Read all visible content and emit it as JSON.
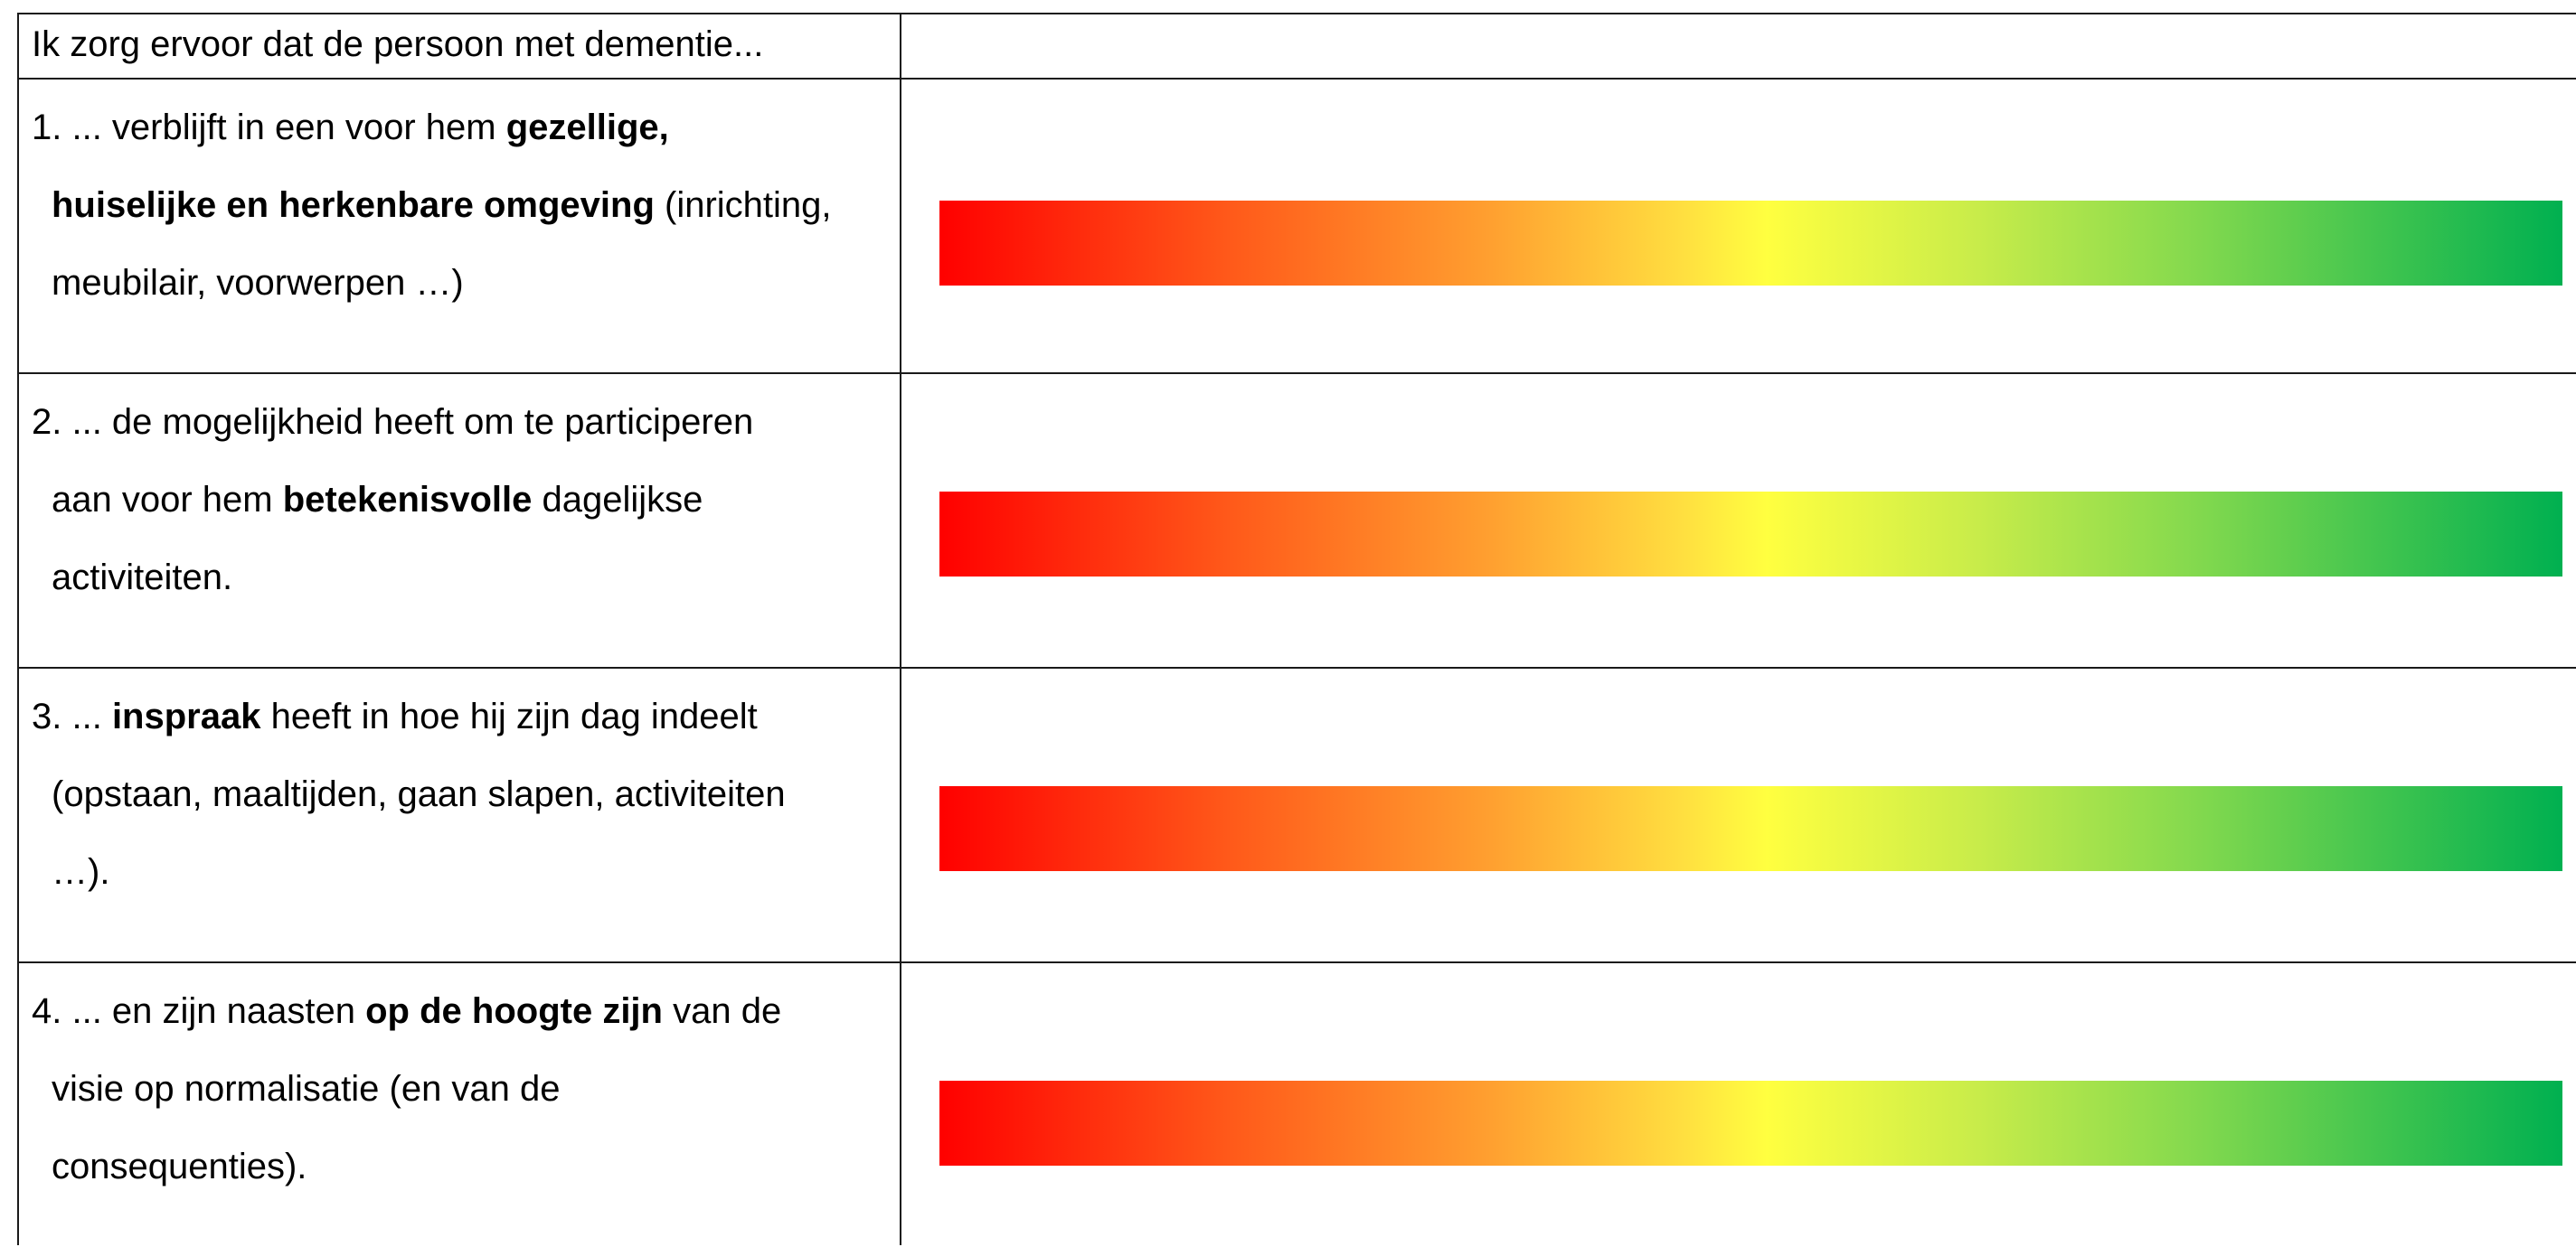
{
  "header": {
    "intro": "Ik zorg ervoor dat de persoon met dementie..."
  },
  "items": [
    {
      "lines": [
        [
          {
            "t": "1. ... verblijft in een voor hem "
          },
          {
            "t": "gezellige,",
            "b": true
          }
        ],
        [
          {
            "t": "huiselijke en herkenbare omgeving",
            "b": true
          },
          {
            "t": " (inrichting,"
          }
        ],
        [
          {
            "t": "meubilair, voorwerpen …)"
          }
        ]
      ]
    },
    {
      "lines": [
        [
          {
            "t": "2. ... de mogelijkheid heeft om te participeren"
          }
        ],
        [
          {
            "t": "aan voor hem "
          },
          {
            "t": "betekenisvolle",
            "b": true
          },
          {
            "t": " dagelijkse"
          }
        ],
        [
          {
            "t": "activiteiten."
          }
        ]
      ]
    },
    {
      "lines": [
        [
          {
            "t": "3. ...  "
          },
          {
            "t": "inspraak",
            "b": true
          },
          {
            "t": " heeft in hoe hij zijn dag indeelt"
          }
        ],
        [
          {
            "t": "(opstaan, maaltijden, gaan slapen, activiteiten"
          }
        ],
        [
          {
            "t": "…)."
          }
        ]
      ]
    },
    {
      "lines": [
        [
          {
            "t": "4. ... en zijn naasten "
          },
          {
            "t": "op de hoogte zijn",
            "b": true
          },
          {
            "t": " van de"
          }
        ],
        [
          {
            "t": "visie op normalisatie (en van de"
          }
        ],
        [
          {
            "t": "consequenties)."
          }
        ]
      ]
    }
  ],
  "colors": {
    "scale_start": "#ff0000",
    "scale_mid": "#ffff40",
    "scale_end": "#00b050"
  }
}
